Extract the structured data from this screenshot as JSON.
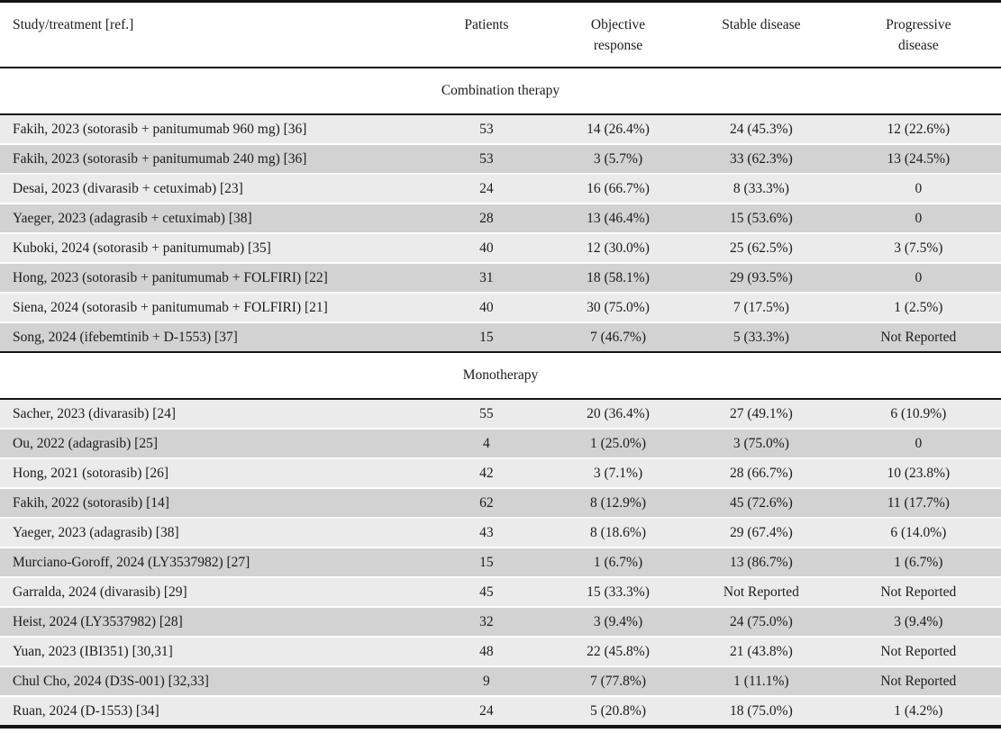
{
  "table": {
    "columns": [
      "Study/treatment [ref.]",
      "Patients",
      "Objective\nresponse",
      "Stable disease",
      "Progressive\ndisease"
    ],
    "sections": [
      {
        "title": "Combination therapy",
        "rows": [
          [
            "Fakih, 2023 (sotorasib + panitumumab 960 mg) [36]",
            "53",
            "14 (26.4%)",
            "24 (45.3%)",
            "12 (22.6%)"
          ],
          [
            "Fakih, 2023 (sotorasib + panitumumab 240 mg) [36]",
            "53",
            "3 (5.7%)",
            "33 (62.3%)",
            "13 (24.5%)"
          ],
          [
            "Desai, 2023 (divarasib + cetuximab) [23]",
            "24",
            "16 (66.7%)",
            "8 (33.3%)",
            "0"
          ],
          [
            "Yaeger, 2023 (adagrasib + cetuximab) [38]",
            "28",
            "13 (46.4%)",
            "15 (53.6%)",
            "0"
          ],
          [
            "Kuboki, 2024 (sotorasib + panitumumab) [35]",
            "40",
            "12 (30.0%)",
            "25 (62.5%)",
            "3 (7.5%)"
          ],
          [
            "Hong, 2023 (sotorasib + panitumumab + FOLFIRI) [22]",
            "31",
            "18 (58.1%)",
            "29 (93.5%)",
            "0"
          ],
          [
            "Siena, 2024 (sotorasib + panitumumab + FOLFIRI) [21]",
            "40",
            "30 (75.0%)",
            "7 (17.5%)",
            "1 (2.5%)"
          ],
          [
            "Song, 2024 (ifebemtinib + D-1553) [37]",
            "15",
            "7 (46.7%)",
            "5 (33.3%)",
            "Not Reported"
          ]
        ]
      },
      {
        "title": "Monotherapy",
        "rows": [
          [
            "Sacher, 2023 (divarasib) [24]",
            "55",
            "20 (36.4%)",
            "27 (49.1%)",
            "6 (10.9%)"
          ],
          [
            "Ou, 2022 (adagrasib) [25]",
            "4",
            "1 (25.0%)",
            "3 (75.0%)",
            "0"
          ],
          [
            "Hong, 2021 (sotorasib) [26]",
            "42",
            "3 (7.1%)",
            "28 (66.7%)",
            "10 (23.8%)"
          ],
          [
            "Fakih, 2022 (sotorasib) [14]",
            "62",
            "8 (12.9%)",
            "45 (72.6%)",
            "11 (17.7%)"
          ],
          [
            "Yaeger, 2023 (adagrasib) [38]",
            "43",
            "8 (18.6%)",
            "29 (67.4%)",
            "6 (14.0%)"
          ],
          [
            "Murciano-Goroff, 2024 (LY3537982) [27]",
            "15",
            "1 (6.7%)",
            "13 (86.7%)",
            "1 (6.7%)"
          ],
          [
            "Garralda, 2024 (divarasib) [29]",
            "45",
            "15 (33.3%)",
            "Not Reported",
            "Not Reported"
          ],
          [
            "Heist, 2024 (LY3537982) [28]",
            "32",
            "3 (9.4%)",
            "24 (75.0%)",
            "3 (9.4%)"
          ],
          [
            "Yuan, 2023 (IBI351) [30,31]",
            "48",
            "22 (45.8%)",
            "21 (43.8%)",
            "Not Reported"
          ],
          [
            "Chul Cho, 2024 (D3S-001) [32,33]",
            "9",
            "7 (77.8%)",
            "1 (11.1%)",
            "Not Reported"
          ],
          [
            "Ruan, 2024 (D-1553) [34]",
            "24",
            "5 (20.8%)",
            "18 (75.0%)",
            "1 (4.2%)"
          ]
        ]
      }
    ]
  },
  "colors": {
    "row_light": "#ebebeb",
    "row_dark": "#d2d2d2",
    "rule": "#141414",
    "text": "#1c1c1c"
  }
}
